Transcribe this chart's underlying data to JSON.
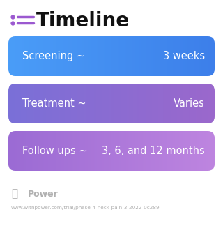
{
  "title": "Timeline",
  "title_icon_color": "#9b59d0",
  "background_color": "#ffffff",
  "rows": [
    {
      "left_text": "Screening ~",
      "right_text": "3 weeks",
      "color_left": "#4a9df8",
      "color_right": "#3d7fea"
    },
    {
      "left_text": "Treatment ~",
      "right_text": "Varies",
      "color_left": "#7a70d8",
      "color_right": "#9b68cc"
    },
    {
      "left_text": "Follow ups ~",
      "right_text": "3, 6, and 12 months",
      "color_left": "#9b6bd4",
      "color_right": "#be85e0"
    }
  ],
  "footer_text": "Power",
  "footer_url": "www.withpower.com/trial/phase-4-neck-pain-3-2022-0c289",
  "footer_color": "#b0b0b0",
  "text_color": "#ffffff"
}
